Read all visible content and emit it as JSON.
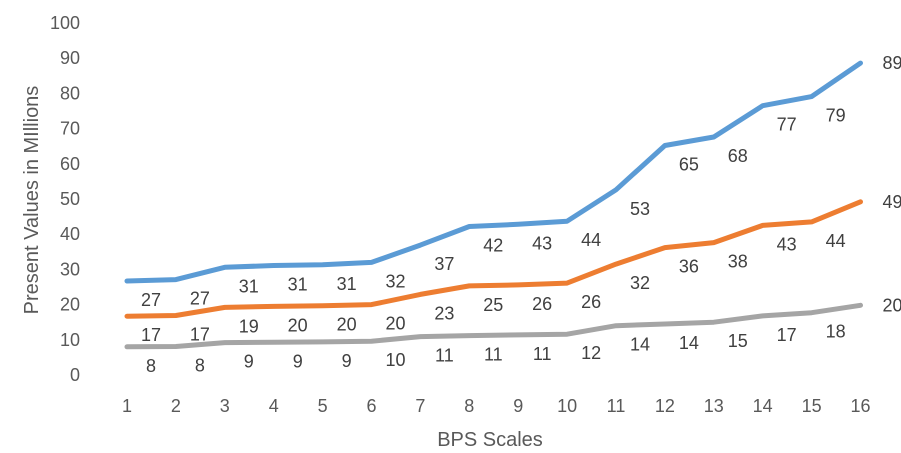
{
  "chart_data": {
    "type": "line",
    "title": "",
    "xlabel": "BPS Scales",
    "ylabel": "Present Values in MIllions",
    "ylim": [
      0,
      100
    ],
    "ytick_step": 10,
    "grid": false,
    "legend": "none",
    "x": [
      "1",
      "2",
      "3",
      "4",
      "5",
      "6",
      "7",
      "8",
      "9",
      "10",
      "11",
      "12",
      "13",
      "14",
      "15",
      "16"
    ],
    "series": [
      {
        "color": "#5B9BD5",
        "values": [
          26.7,
          27.1,
          30.6,
          31.1,
          31.3,
          32.0,
          36.9,
          42.2,
          42.8,
          43.7,
          52.6,
          65.2,
          67.6,
          76.5,
          79.1,
          88.6
        ],
        "labels": [
          "27",
          "27",
          "31",
          "31",
          "31",
          "32",
          "37",
          "42",
          "43",
          "44",
          "53",
          "65",
          "68",
          "77",
          "79",
          "89"
        ]
      },
      {
        "color": "#ED7D31",
        "values": [
          16.7,
          16.9,
          19.2,
          19.5,
          19.7,
          20.0,
          22.9,
          25.3,
          25.6,
          26.1,
          31.5,
          36.2,
          37.6,
          42.5,
          43.5,
          49.2
        ],
        "labels": [
          "17",
          "17",
          "19",
          "20",
          "20",
          "20",
          "23",
          "25",
          "26",
          "26",
          "32",
          "36",
          "38",
          "43",
          "44",
          "49"
        ]
      },
      {
        "color": "#A5A5A5",
        "values": [
          8.0,
          8.1,
          9.2,
          9.3,
          9.4,
          9.6,
          10.9,
          11.2,
          11.4,
          11.6,
          14.0,
          14.5,
          15.0,
          16.8,
          17.7,
          19.8
        ],
        "labels": [
          "8",
          "8",
          "9",
          "9",
          "9",
          "10",
          "11",
          "11",
          "11",
          "12",
          "14",
          "14",
          "15",
          "17",
          "18",
          "20"
        ]
      }
    ]
  }
}
